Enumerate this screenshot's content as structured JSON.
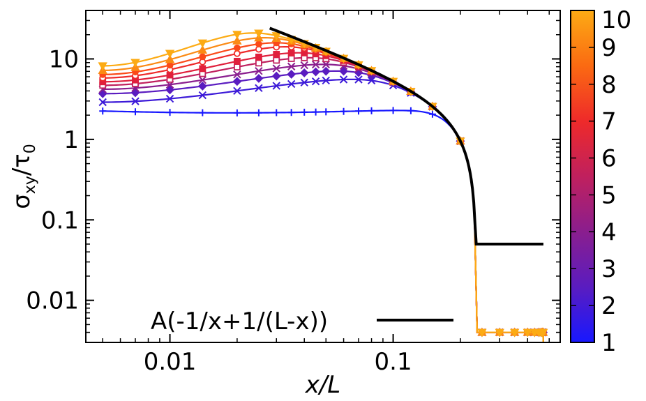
{
  "chart_data": {
    "type": "line",
    "title": "",
    "xlabel": "x/L",
    "ylabel_main": "σ",
    "ylabel_sub": "xy",
    "ylabel_sep": "/τ",
    "ylabel_sub2": "0",
    "xscale": "log",
    "yscale": "log",
    "xlim": [
      0.0042,
      0.56
    ],
    "ylim": [
      0.003,
      40
    ],
    "x_ticks": [
      {
        "value": 0.01,
        "label": "0.01"
      },
      {
        "value": 0.1,
        "label": "0.1"
      }
    ],
    "y_ticks": [
      {
        "value": 0.01,
        "label": "0.01"
      },
      {
        "value": 0.1,
        "label": "0.1"
      },
      {
        "value": 1,
        "label": "1"
      },
      {
        "value": 10,
        "label": "10"
      }
    ],
    "grid": false,
    "legend": {
      "placement": "bottom-center",
      "entries": [
        {
          "label": "A(-1/x+1/(L-x))",
          "color": "#000000"
        }
      ]
    },
    "colorbar": {
      "range": [
        1,
        10
      ],
      "ticks": [
        "1",
        "2",
        "3",
        "4",
        "5",
        "6",
        "7",
        "8",
        "9",
        "10"
      ],
      "colors": [
        "#1818ff",
        "#5a1cc0",
        "#8a1e8e",
        "#c0205e",
        "#ee2a2a",
        "#fb6a12",
        "#fcab14"
      ]
    },
    "series": [
      {
        "level": 1,
        "color": "#1818ff",
        "marker": "plus",
        "peak_x": 0.13,
        "y_start": 2.25,
        "y_peak": 2.35,
        "y_mid": 2.08
      },
      {
        "level": 2,
        "color": "#3c1ad8",
        "marker": "cross",
        "peak_x": 0.1,
        "y_start": 2.9,
        "y_peak": 6.0
      },
      {
        "level": 3,
        "color": "#5a1cc0",
        "marker": "diamond",
        "peak_x": 0.09,
        "y_start": 3.7,
        "y_peak": 7.8
      },
      {
        "level": 4,
        "color": "#8a1e8e",
        "marker": "cross",
        "peak_x": 0.075,
        "y_start": 4.2,
        "y_peak": 9.5
      },
      {
        "level": 5,
        "color": "#c0205e",
        "marker": "square-open",
        "peak_x": 0.06,
        "y_start": 4.7,
        "y_peak": 11.5
      },
      {
        "level": 6,
        "color": "#e0203c",
        "marker": "square",
        "peak_x": 0.055,
        "y_start": 5.2,
        "y_peak": 13.5
      },
      {
        "level": 7,
        "color": "#ee2a2a",
        "marker": "circle-open",
        "peak_x": 0.045,
        "y_start": 5.8,
        "y_peak": 16
      },
      {
        "level": 8,
        "color": "#fb4a18",
        "marker": "circle",
        "peak_x": 0.04,
        "y_start": 6.4,
        "y_peak": 18
      },
      {
        "level": 9,
        "color": "#fb8a14",
        "marker": "triangle",
        "peak_x": 0.035,
        "y_start": 7.2,
        "y_peak": 21
      },
      {
        "level": 10,
        "color": "#fcab14",
        "marker": "triangle-down",
        "peak_x": 0.03,
        "y_start": 8.2,
        "y_peak": 24
      }
    ],
    "reference_curve": {
      "label": "A(-1/x+1/(L-x))",
      "color": "#000000",
      "A": 0.72,
      "L": 0.472,
      "x_range": [
        0.028,
        0.471
      ]
    },
    "end_x": 0.47,
    "x_samples": [
      0.005,
      0.007,
      0.01,
      0.014,
      0.02,
      0.025,
      0.03,
      0.035,
      0.04,
      0.045,
      0.05,
      0.06,
      0.07,
      0.08,
      0.1,
      0.12,
      0.15,
      0.2,
      0.25,
      0.3,
      0.35,
      0.4,
      0.43,
      0.45,
      0.46,
      0.465,
      0.468,
      0.47
    ]
  }
}
